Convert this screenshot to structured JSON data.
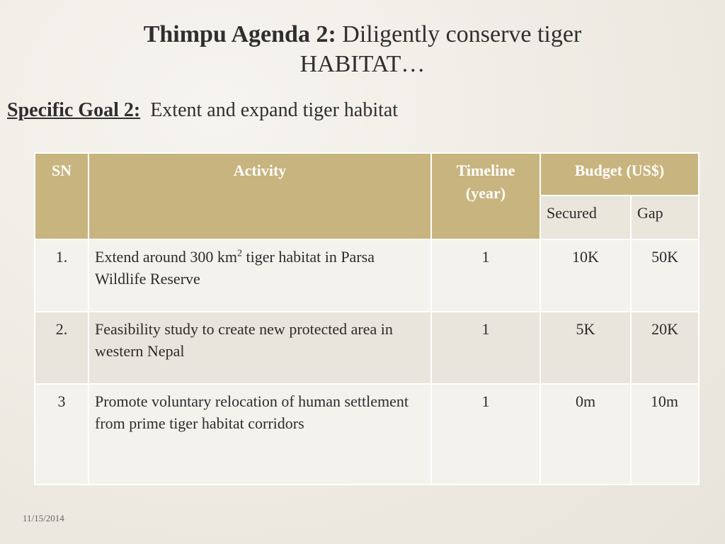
{
  "title": {
    "bold": "Thimpu Agenda 2:",
    "rest": "Diligently conserve tiger",
    "line2": "HABITAT…"
  },
  "goal": {
    "label": "Specific Goal 2:",
    "text": "Extent and expand tiger habitat"
  },
  "table": {
    "headers": {
      "sn": "SN",
      "activity": "Activity",
      "timeline": "Timeline (year)",
      "budget": "Budget (US$)",
      "secured": "Secured",
      "gap": "Gap"
    },
    "rows": [
      {
        "sn": "1.",
        "activity_pre": "Extend around 300 km",
        "activity_sup": "2",
        "activity_post": " tiger habitat in Parsa Wildlife Reserve",
        "timeline": "1",
        "secured": "10K",
        "gap": "50K"
      },
      {
        "sn": "2.",
        "activity": "Feasibility study to create new protected area in western Nepal",
        "timeline": "1",
        "secured": "5K",
        "gap": "20K"
      },
      {
        "sn": "3",
        "activity": "Promote voluntary relocation of human settlement from prime tiger habitat corridors",
        "timeline": "1",
        "secured": "0m",
        "gap": "10m"
      }
    ]
  },
  "footer": {
    "date": "11/15/2014"
  },
  "colors": {
    "header": "#c8b47e",
    "row_light": "#f4f2ed",
    "row_dark": "#e9e5dc"
  }
}
